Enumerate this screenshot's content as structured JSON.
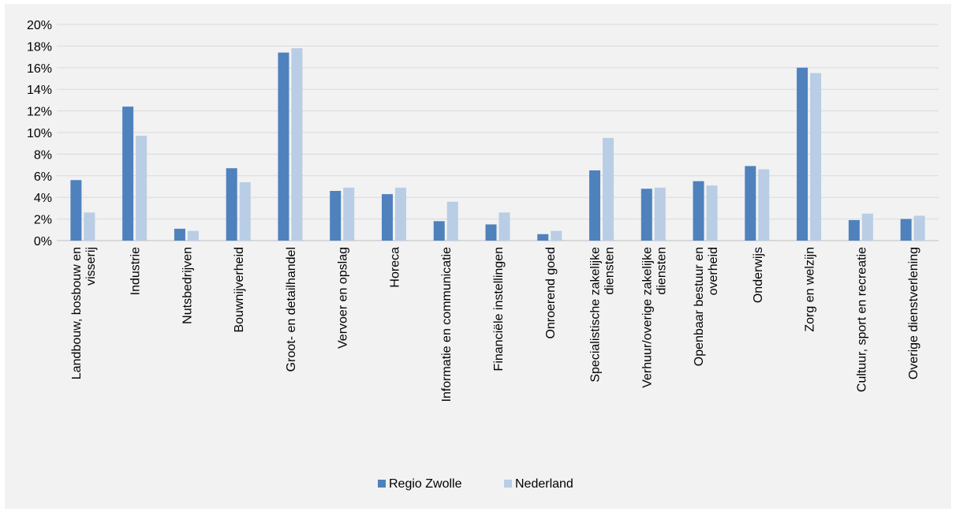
{
  "chart_data": {
    "type": "bar",
    "title": "",
    "xlabel": "",
    "ylabel": "",
    "ylim": [
      0,
      20
    ],
    "yticks": [
      "0%",
      "2%",
      "4%",
      "6%",
      "8%",
      "10%",
      "12%",
      "14%",
      "16%",
      "18%",
      "20%"
    ],
    "grid": true,
    "legend_position": "bottom",
    "categories": [
      "Landbouw, bosbouw en visserij",
      "Industrie",
      "Nutsbedrijven",
      "Bouwnijverheid",
      "Groot- en detailhandel",
      "Vervoer en opslag",
      "Horeca",
      "Informatie en communicatie",
      "Financiële instellingen",
      "Onroerend goed",
      "Specialistische zakelijke diensten",
      "Verhuur/overige zakelijke diensten",
      "Openbaar bestuur en overheid",
      "Onderwijs",
      "Zorg en welzijn",
      "Cultuur, sport en recreatie",
      "Overige dienstverlening"
    ],
    "category_lines": [
      [
        "Landbouw, bosbouw en",
        "visserij"
      ],
      [
        "Industrie"
      ],
      [
        "Nutsbedrijven"
      ],
      [
        "Bouwnijverheid"
      ],
      [
        "Groot- en detailhandel"
      ],
      [
        "Vervoer en opslag"
      ],
      [
        "Horeca"
      ],
      [
        "Informatie en communicatie"
      ],
      [
        "Financiële instellingen"
      ],
      [
        "Onroerend goed"
      ],
      [
        "Specialistische zakelijke",
        "diensten"
      ],
      [
        "Verhuur/overige zakelijke",
        "diensten"
      ],
      [
        "Openbaar bestuur en",
        "overheid"
      ],
      [
        "Onderwijs"
      ],
      [
        "Zorg en welzijn"
      ],
      [
        "Cultuur, sport en recreatie"
      ],
      [
        "Overige dienstverlening"
      ]
    ],
    "series": [
      {
        "name": "Regio Zwolle",
        "color": "#4f81bd",
        "values": [
          5.6,
          12.4,
          1.1,
          6.7,
          17.4,
          4.6,
          4.3,
          1.8,
          1.5,
          0.6,
          6.5,
          4.8,
          5.5,
          6.9,
          16.0,
          1.9,
          2.0
        ]
      },
      {
        "name": "Nederland",
        "color": "#b9cde5",
        "values": [
          2.6,
          9.7,
          0.9,
          5.4,
          17.8,
          4.9,
          4.9,
          3.6,
          2.6,
          0.9,
          9.5,
          4.9,
          5.1,
          6.6,
          15.5,
          2.5,
          2.3
        ]
      }
    ],
    "colors": {
      "grid": "#d9d9d9",
      "axis": "#bfbfbf",
      "background": "#f2f2f2"
    }
  }
}
